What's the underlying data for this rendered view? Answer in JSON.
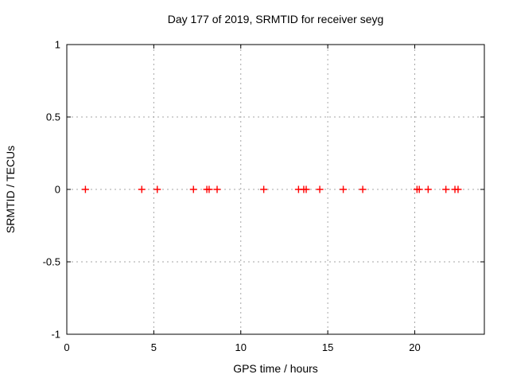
{
  "chart_data": {
    "type": "scatter",
    "title": "Day 177 of 2019, SRMTID for receiver seyg",
    "xlabel": "GPS time / hours",
    "ylabel": "SRMTID / TECUs",
    "xlim": [
      0,
      24
    ],
    "ylim": [
      -1,
      1
    ],
    "xticks": [
      0,
      5,
      10,
      15,
      20
    ],
    "xtick_labels": [
      "0",
      "5",
      "10",
      "15",
      "20"
    ],
    "yticks": [
      -1,
      -0.5,
      0,
      0.5,
      1
    ],
    "ytick_labels": [
      "-1",
      "-0.5",
      "0",
      "0.5",
      "1"
    ],
    "grid": true,
    "legend": "none",
    "marker": "plus",
    "colors": {
      "marker": "#ff0000",
      "grid": "#a6a6a6",
      "border": "#000000",
      "background": "#ffffff",
      "text": "#000000"
    },
    "series": [
      {
        "name": "SRMTID",
        "x": [
          1.07,
          4.31,
          5.2,
          7.28,
          8.05,
          8.18,
          8.64,
          11.32,
          13.32,
          13.62,
          13.76,
          14.54,
          15.89,
          17.01,
          20.13,
          20.26,
          20.77,
          21.79,
          22.31,
          22.49
        ],
        "y": [
          0,
          0,
          0,
          0,
          0,
          0,
          0,
          0,
          0,
          0,
          0,
          0,
          0,
          0,
          0,
          0,
          0,
          0,
          0,
          0
        ]
      }
    ]
  }
}
